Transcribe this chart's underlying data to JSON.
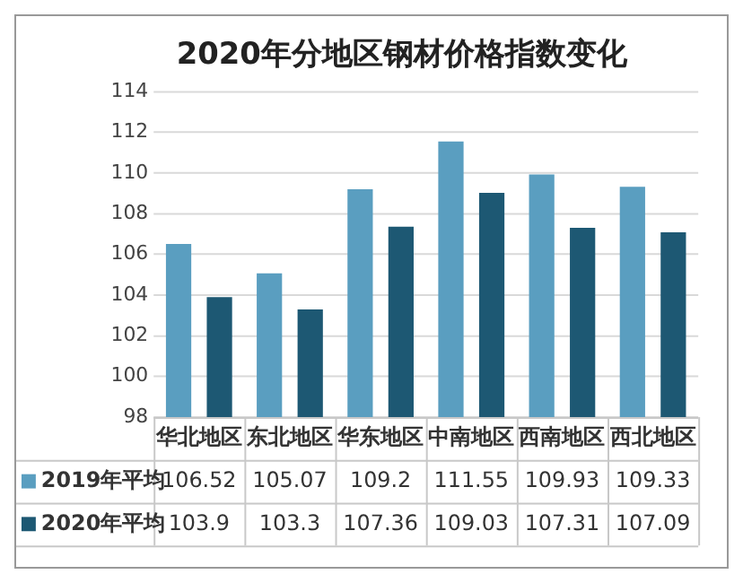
{
  "chart_data": {
    "type": "bar",
    "title": "2020年分地区钢材价格指数变化",
    "categories": [
      "华北地区",
      "东北地区",
      "华东地区",
      "中南地区",
      "西南地区",
      "西北地区"
    ],
    "series": [
      {
        "name": "2019年平均",
        "color": "#5a9ec0",
        "values": [
          106.52,
          105.07,
          109.2,
          111.55,
          109.93,
          109.33
        ]
      },
      {
        "name": "2020年平均",
        "color": "#1d5873",
        "values": [
          103.9,
          103.3,
          107.36,
          109.03,
          107.31,
          107.09
        ]
      }
    ],
    "ylim": [
      98,
      114
    ],
    "yticks": [
      98,
      100,
      102,
      104,
      106,
      108,
      110,
      112,
      114
    ],
    "grid": "y",
    "legend": "bottom",
    "data_labels": true
  }
}
